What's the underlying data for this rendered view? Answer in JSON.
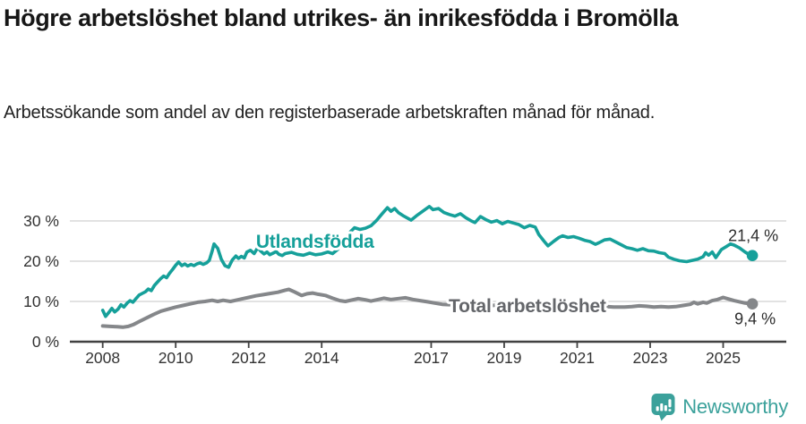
{
  "header": {
    "title": "Högre arbetslöshet bland utrikes- än inrikesfödda i Bromölla",
    "subtitle": "Arbetssökande som andel av den registerbaserade arbetskraften månad för månad."
  },
  "footer": {
    "brand": "Newsworthy",
    "brand_color": "#3ba19b"
  },
  "chart_data": {
    "type": "line",
    "title": "Högre arbetslöshet bland utrikes- än inrikesfödda i Bromölla",
    "subtitle": "Arbetssökande som andel av den registerbaserade arbetskraften månad för månad.",
    "grid": true,
    "background": "#ffffff",
    "grid_color": "#d9d9d9",
    "axis_color": "#414141",
    "tick_label_color": "#333333",
    "value_label_color": "#2d2d2d",
    "x_axis": {
      "min": 2007.1,
      "max": 2026.73,
      "ticks": [
        {
          "value": 2008,
          "label": "2008"
        },
        {
          "value": 2010,
          "label": "2010"
        },
        {
          "value": 2012,
          "label": "2012"
        },
        {
          "value": 2014,
          "label": "2014"
        },
        {
          "value": 2017,
          "label": "2017"
        },
        {
          "value": 2019,
          "label": "2019"
        },
        {
          "value": 2021,
          "label": "2021"
        },
        {
          "value": 2023,
          "label": "2023"
        },
        {
          "value": 2025,
          "label": "2025"
        }
      ]
    },
    "y_axis": {
      "min": 0,
      "max": 35,
      "ticks": [
        {
          "value": 0,
          "label": "0 %"
        },
        {
          "value": 10,
          "label": "10 %"
        },
        {
          "value": 20,
          "label": "20 %"
        },
        {
          "value": 30,
          "label": "30 %"
        }
      ]
    },
    "series": [
      {
        "name": "Total arbetslöshet",
        "id": "total-arbetsloshet",
        "color": "#85878a",
        "label_color": "#64666a",
        "label_anchor": {
          "x": 2017.48,
          "y": 7.3
        },
        "end_label": "9,4 %",
        "end_value": 9.4,
        "end_label_offset": {
          "dx": 3,
          "dy": 23
        },
        "points": [
          [
            2008.0,
            3.9
          ],
          [
            2008.2,
            3.8
          ],
          [
            2008.4,
            3.7
          ],
          [
            2008.55,
            3.6
          ],
          [
            2008.7,
            3.8
          ],
          [
            2008.85,
            4.3
          ],
          [
            2009.0,
            5.0
          ],
          [
            2009.2,
            5.9
          ],
          [
            2009.4,
            6.8
          ],
          [
            2009.6,
            7.6
          ],
          [
            2009.8,
            8.1
          ],
          [
            2010.0,
            8.6
          ],
          [
            2010.2,
            9.0
          ],
          [
            2010.4,
            9.4
          ],
          [
            2010.6,
            9.8
          ],
          [
            2010.8,
            10.0
          ],
          [
            2011.0,
            10.3
          ],
          [
            2011.15,
            10.0
          ],
          [
            2011.3,
            10.3
          ],
          [
            2011.5,
            10.0
          ],
          [
            2011.7,
            10.4
          ],
          [
            2011.85,
            10.7
          ],
          [
            2012.0,
            11.0
          ],
          [
            2012.2,
            11.4
          ],
          [
            2012.4,
            11.7
          ],
          [
            2012.6,
            12.0
          ],
          [
            2012.8,
            12.3
          ],
          [
            2013.0,
            12.8
          ],
          [
            2013.1,
            13.0
          ],
          [
            2013.25,
            12.4
          ],
          [
            2013.45,
            11.5
          ],
          [
            2013.6,
            11.9
          ],
          [
            2013.75,
            12.1
          ],
          [
            2013.9,
            11.8
          ],
          [
            2014.1,
            11.5
          ],
          [
            2014.3,
            10.8
          ],
          [
            2014.5,
            10.2
          ],
          [
            2014.65,
            10.0
          ],
          [
            2014.85,
            10.4
          ],
          [
            2015.0,
            10.7
          ],
          [
            2015.2,
            10.4
          ],
          [
            2015.35,
            10.1
          ],
          [
            2015.55,
            10.5
          ],
          [
            2015.7,
            10.8
          ],
          [
            2015.9,
            10.5
          ],
          [
            2016.1,
            10.7
          ],
          [
            2016.3,
            10.9
          ],
          [
            2016.5,
            10.5
          ],
          [
            2016.7,
            10.2
          ],
          [
            2016.9,
            9.9
          ],
          [
            2017.1,
            9.6
          ],
          [
            2017.3,
            9.3
          ],
          [
            2017.5,
            9.2
          ],
          [
            2017.75,
            9.3
          ],
          [
            2018.0,
            9.4
          ],
          [
            2018.3,
            9.2
          ],
          [
            2018.6,
            9.0
          ],
          [
            2018.9,
            9.1
          ],
          [
            2019.2,
            9.0
          ],
          [
            2019.5,
            8.9
          ],
          [
            2019.8,
            8.8
          ],
          [
            2020.1,
            9.1
          ],
          [
            2020.35,
            9.5
          ],
          [
            2020.6,
            9.6
          ],
          [
            2020.85,
            9.4
          ],
          [
            2021.1,
            9.2
          ],
          [
            2021.4,
            9.0
          ],
          [
            2021.7,
            8.8
          ],
          [
            2022.0,
            8.6
          ],
          [
            2022.3,
            8.6
          ],
          [
            2022.5,
            8.7
          ],
          [
            2022.7,
            8.9
          ],
          [
            2022.9,
            8.8
          ],
          [
            2023.1,
            8.6
          ],
          [
            2023.3,
            8.7
          ],
          [
            2023.5,
            8.6
          ],
          [
            2023.7,
            8.7
          ],
          [
            2023.9,
            9.0
          ],
          [
            2024.1,
            9.3
          ],
          [
            2024.2,
            9.8
          ],
          [
            2024.3,
            9.4
          ],
          [
            2024.45,
            9.8
          ],
          [
            2024.55,
            9.6
          ],
          [
            2024.7,
            10.2
          ],
          [
            2024.85,
            10.5
          ],
          [
            2025.0,
            11.0
          ],
          [
            2025.15,
            10.6
          ],
          [
            2025.3,
            10.2
          ],
          [
            2025.45,
            9.9
          ],
          [
            2025.6,
            9.6
          ],
          [
            2025.8,
            9.4
          ]
        ]
      },
      {
        "name": "Utlandsfödda",
        "id": "utlandsfodda",
        "color": "#16a09a",
        "label_color": "#16a09a",
        "label_anchor": {
          "x": 2012.2,
          "y": 23.3
        },
        "end_label": "21,4 %",
        "end_value": 21.4,
        "end_label_offset": {
          "dx": 1,
          "dy": -16
        },
        "points": [
          [
            2008.0,
            7.8
          ],
          [
            2008.08,
            6.3
          ],
          [
            2008.17,
            7.3
          ],
          [
            2008.25,
            8.3
          ],
          [
            2008.33,
            7.4
          ],
          [
            2008.42,
            8.1
          ],
          [
            2008.5,
            9.2
          ],
          [
            2008.58,
            8.6
          ],
          [
            2008.67,
            9.6
          ],
          [
            2008.75,
            10.2
          ],
          [
            2008.83,
            9.8
          ],
          [
            2008.92,
            10.8
          ],
          [
            2009.0,
            11.6
          ],
          [
            2009.17,
            12.4
          ],
          [
            2009.25,
            13.1
          ],
          [
            2009.33,
            12.7
          ],
          [
            2009.42,
            14.0
          ],
          [
            2009.5,
            14.8
          ],
          [
            2009.58,
            15.6
          ],
          [
            2009.67,
            16.3
          ],
          [
            2009.75,
            15.9
          ],
          [
            2009.83,
            17.0
          ],
          [
            2009.92,
            18.0
          ],
          [
            2010.0,
            19.0
          ],
          [
            2010.08,
            19.8
          ],
          [
            2010.17,
            18.9
          ],
          [
            2010.25,
            19.3
          ],
          [
            2010.33,
            18.8
          ],
          [
            2010.42,
            19.2
          ],
          [
            2010.5,
            18.9
          ],
          [
            2010.58,
            19.3
          ],
          [
            2010.67,
            19.6
          ],
          [
            2010.75,
            19.2
          ],
          [
            2010.85,
            19.6
          ],
          [
            2010.92,
            20.2
          ],
          [
            2011.0,
            22.5
          ],
          [
            2011.05,
            24.3
          ],
          [
            2011.15,
            23.2
          ],
          [
            2011.25,
            20.5
          ],
          [
            2011.35,
            18.9
          ],
          [
            2011.45,
            18.5
          ],
          [
            2011.55,
            20.3
          ],
          [
            2011.65,
            21.3
          ],
          [
            2011.72,
            20.7
          ],
          [
            2011.8,
            21.2
          ],
          [
            2011.88,
            20.8
          ],
          [
            2011.95,
            22.3
          ],
          [
            2012.05,
            22.7
          ],
          [
            2012.15,
            21.9
          ],
          [
            2012.25,
            23.4
          ],
          [
            2012.33,
            22.5
          ],
          [
            2012.42,
            21.8
          ],
          [
            2012.5,
            22.3
          ],
          [
            2012.58,
            21.6
          ],
          [
            2012.67,
            22.0
          ],
          [
            2012.75,
            22.4
          ],
          [
            2012.83,
            21.7
          ],
          [
            2012.92,
            21.4
          ],
          [
            2013.0,
            21.9
          ],
          [
            2013.17,
            22.2
          ],
          [
            2013.33,
            21.7
          ],
          [
            2013.5,
            21.5
          ],
          [
            2013.67,
            22.0
          ],
          [
            2013.83,
            21.6
          ],
          [
            2014.0,
            21.8
          ],
          [
            2014.17,
            22.3
          ],
          [
            2014.3,
            21.9
          ],
          [
            2014.45,
            23.0
          ],
          [
            2014.6,
            25.0
          ],
          [
            2014.75,
            27.0
          ],
          [
            2014.9,
            28.3
          ],
          [
            2015.05,
            27.9
          ],
          [
            2015.2,
            28.2
          ],
          [
            2015.35,
            28.8
          ],
          [
            2015.5,
            30.1
          ],
          [
            2015.65,
            31.7
          ],
          [
            2015.8,
            33.3
          ],
          [
            2015.9,
            32.4
          ],
          [
            2016.0,
            33.1
          ],
          [
            2016.1,
            32.1
          ],
          [
            2016.25,
            31.2
          ],
          [
            2016.45,
            30.2
          ],
          [
            2016.6,
            31.3
          ],
          [
            2016.75,
            32.3
          ],
          [
            2016.95,
            33.6
          ],
          [
            2017.05,
            32.8
          ],
          [
            2017.2,
            33.1
          ],
          [
            2017.35,
            32.1
          ],
          [
            2017.5,
            31.6
          ],
          [
            2017.65,
            31.2
          ],
          [
            2017.8,
            31.8
          ],
          [
            2017.95,
            30.8
          ],
          [
            2018.1,
            30.0
          ],
          [
            2018.2,
            29.6
          ],
          [
            2018.35,
            31.1
          ],
          [
            2018.5,
            30.3
          ],
          [
            2018.65,
            29.7
          ],
          [
            2018.8,
            30.1
          ],
          [
            2018.95,
            29.3
          ],
          [
            2019.1,
            29.9
          ],
          [
            2019.25,
            29.5
          ],
          [
            2019.4,
            29.1
          ],
          [
            2019.55,
            28.3
          ],
          [
            2019.7,
            28.9
          ],
          [
            2019.85,
            28.5
          ],
          [
            2019.95,
            26.6
          ],
          [
            2020.1,
            24.9
          ],
          [
            2020.2,
            23.8
          ],
          [
            2020.35,
            24.9
          ],
          [
            2020.5,
            25.9
          ],
          [
            2020.6,
            26.3
          ],
          [
            2020.75,
            25.9
          ],
          [
            2020.9,
            26.1
          ],
          [
            2021.05,
            25.7
          ],
          [
            2021.2,
            25.2
          ],
          [
            2021.35,
            24.9
          ],
          [
            2021.5,
            24.2
          ],
          [
            2021.6,
            24.6
          ],
          [
            2021.75,
            25.3
          ],
          [
            2021.9,
            25.5
          ],
          [
            2022.05,
            24.8
          ],
          [
            2022.2,
            24.1
          ],
          [
            2022.35,
            23.4
          ],
          [
            2022.5,
            23.1
          ],
          [
            2022.65,
            22.7
          ],
          [
            2022.8,
            23.1
          ],
          [
            2022.95,
            22.6
          ],
          [
            2023.1,
            22.5
          ],
          [
            2023.25,
            22.1
          ],
          [
            2023.4,
            21.9
          ],
          [
            2023.5,
            21.0
          ],
          [
            2023.65,
            20.5
          ],
          [
            2023.8,
            20.1
          ],
          [
            2024.0,
            19.9
          ],
          [
            2024.15,
            20.2
          ],
          [
            2024.3,
            20.5
          ],
          [
            2024.45,
            21.1
          ],
          [
            2024.52,
            22.1
          ],
          [
            2024.6,
            21.5
          ],
          [
            2024.7,
            22.3
          ],
          [
            2024.8,
            20.9
          ],
          [
            2024.95,
            22.9
          ],
          [
            2025.1,
            23.7
          ],
          [
            2025.2,
            24.3
          ],
          [
            2025.3,
            24.0
          ],
          [
            2025.45,
            23.3
          ],
          [
            2025.6,
            22.3
          ],
          [
            2025.7,
            21.7
          ],
          [
            2025.8,
            21.4
          ]
        ]
      }
    ],
    "legend_position": "inline-labels"
  }
}
